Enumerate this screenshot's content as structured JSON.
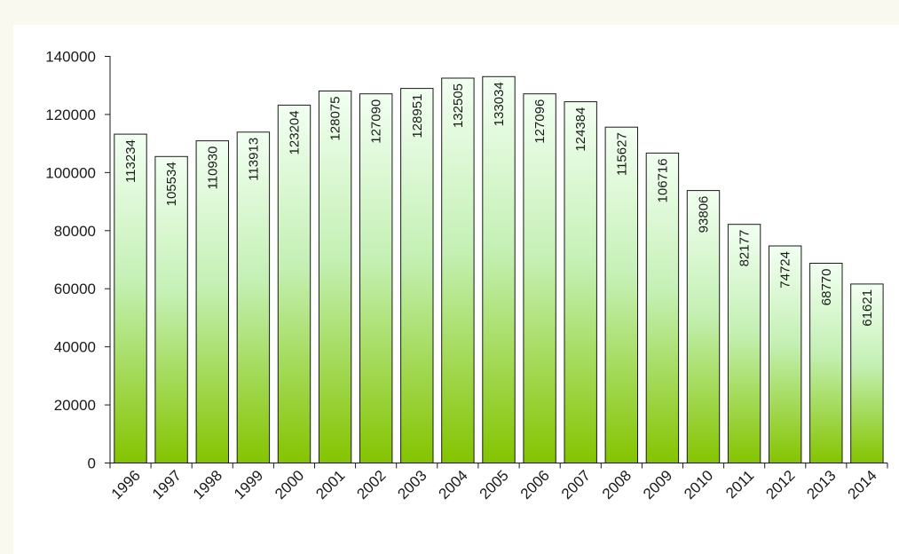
{
  "chart_data": {
    "type": "bar",
    "categories": [
      "1996",
      "1997",
      "1998",
      "1999",
      "2000",
      "2001",
      "2002",
      "2003",
      "2004",
      "2005",
      "2006",
      "2007",
      "2008",
      "2009",
      "2010",
      "2011",
      "2012",
      "2013",
      "2014"
    ],
    "values": [
      113234,
      105534,
      110930,
      113913,
      123204,
      128075,
      127090,
      128951,
      132505,
      133034,
      127096,
      124384,
      115627,
      106716,
      93806,
      82177,
      74724,
      68770,
      61621
    ],
    "title": "",
    "xlabel": "",
    "ylabel": "",
    "ylim": [
      0,
      140000
    ],
    "yticks": [
      "0",
      "20000",
      "40000",
      "60000",
      "80000",
      "100000",
      "120000",
      "140000"
    ],
    "grid": false,
    "data_labels": "inside, rotated vertical",
    "colors": {
      "bar_top": "#f2fff2",
      "bar_mid": "#c4f0b4",
      "bar_bottom": "#84c400",
      "bar_border": "#1a1a1a",
      "axis": "#1a1a1a",
      "top_band": "#f9f9ef"
    }
  }
}
